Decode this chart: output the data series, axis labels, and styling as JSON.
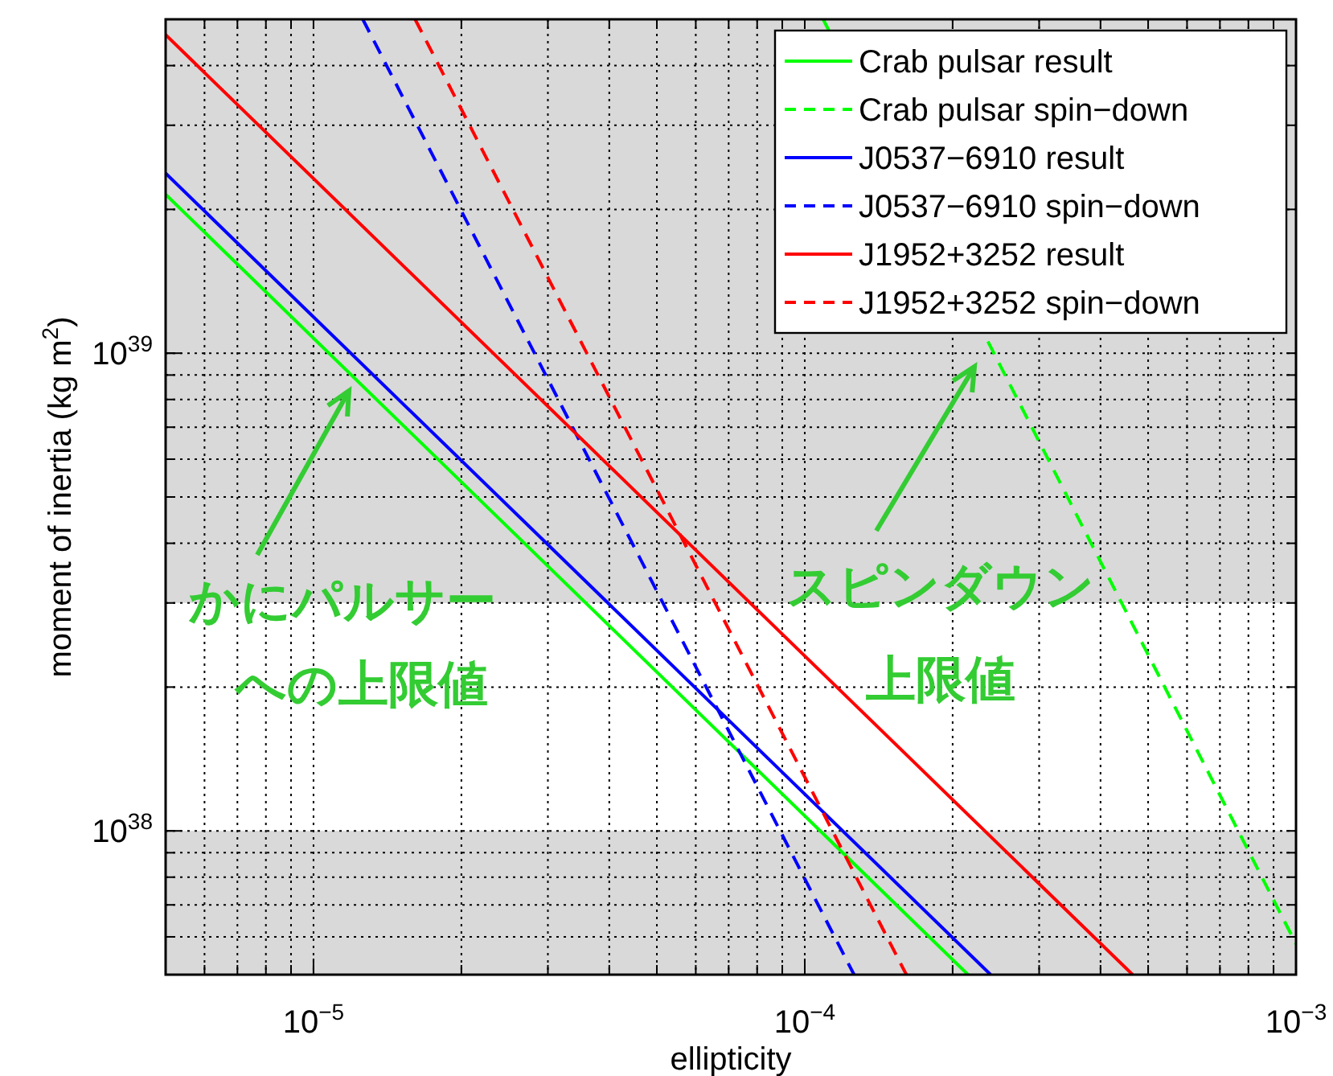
{
  "chart_data": {
    "type": "line",
    "xlabel": "ellipticity",
    "ylabel": "moment of inertia (kg m$^{2}$)",
    "log": "xy",
    "grid": true,
    "legend": "top right",
    "xlim": [
      5e-06,
      0.001
    ],
    "ylim": [
      5e+37,
      5e+39
    ],
    "xticks": [
      {
        "value": 1e-05,
        "label": "10$^{−5}$"
      },
      {
        "value": 0.0001,
        "label": "10$^{−4}$"
      },
      {
        "value": 0.001,
        "label": "10$^{−3}$"
      }
    ],
    "yticks": [
      {
        "value": 1e+38,
        "label": "10$^{38}$"
      },
      {
        "value": 1e+39,
        "label": "10$^{39}$"
      }
    ],
    "bands": [
      {
        "axis": "y",
        "from": 5e+37,
        "to": 1e+38,
        "color": "#d9d9d9"
      },
      {
        "axis": "y",
        "from": 3e+38,
        "to": 5e+39,
        "color": "#d9d9d9"
      }
    ],
    "series": [
      {
        "name": "Crab pulsar result",
        "color": "#00ff00",
        "line_style": "solid",
        "x": [
          5e-06,
          0.000215
        ],
        "values": [
          2.15e+39,
          5e+37
        ]
      },
      {
        "name": "Crab pulsar spin−down",
        "color": "#00ff00",
        "line_style": "dashed",
        "x": [
          0.000109,
          0.001
        ],
        "values": [
          5e+39,
          5.8e+37
        ]
      },
      {
        "name": "J0537−6910 result",
        "color": "#0000ff",
        "line_style": "solid",
        "x": [
          5e-06,
          0.000239
        ],
        "values": [
          2.38e+39,
          5e+37
        ]
      },
      {
        "name": "J0537−6910 spin−down",
        "color": "#0000ff",
        "line_style": "dashed",
        "x": [
          1.26e-05,
          0.000126
        ],
        "values": [
          5e+39,
          5e+37
        ]
      },
      {
        "name": "J1952+3252 result",
        "color": "#ff0000",
        "line_style": "solid",
        "x": [
          5e-06,
          0.000465
        ],
        "values": [
          4.64e+39,
          5e+37
        ]
      },
      {
        "name": "J1952+3252 spin−down",
        "color": "#ff0000",
        "line_style": "dashed",
        "x": [
          1.61e-05,
          0.000161
        ],
        "values": [
          5e+39,
          5e+37
        ]
      }
    ],
    "annotations": [
      "かにパルサー",
      "への上限値",
      "スピンダウン",
      "上限値"
    ]
  }
}
